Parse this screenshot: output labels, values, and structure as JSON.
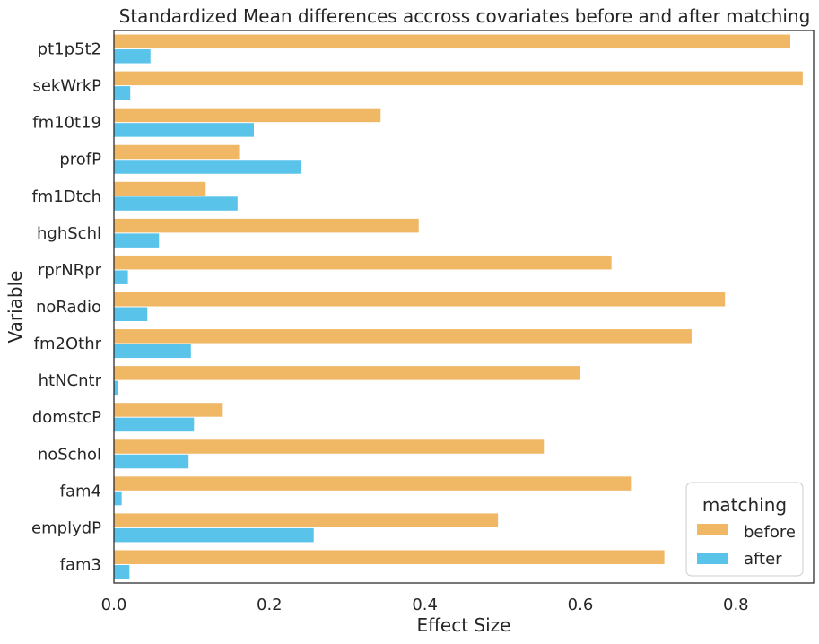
{
  "chart_data": {
    "type": "bar",
    "orientation": "horizontal",
    "title": "Standardized Mean differences accross covariates before and after matching",
    "xlabel": "Effect Size",
    "ylabel": "Variable",
    "xlim": [
      0,
      0.9
    ],
    "xticks": [
      "0.0",
      "0.2",
      "0.4",
      "0.6",
      "0.8"
    ],
    "xtick_values": [
      0,
      0.2,
      0.4,
      0.6,
      0.8
    ],
    "grid": false,
    "legend": {
      "title": "matching",
      "position": "bottom-right"
    },
    "categories": [
      "pt1p5t2",
      "sekWrkP",
      "fm10t19",
      "profP",
      "fm1Dtch",
      "hghSchl",
      "rprNRpr",
      "noRadio",
      "fm2Othr",
      "htNCntr",
      "domstcP",
      "noSchol",
      "fam4",
      "emplydP",
      "fam3"
    ],
    "series": [
      {
        "name": "before",
        "color": "#F0B765",
        "values": [
          0.87,
          0.886,
          0.343,
          0.161,
          0.118,
          0.392,
          0.64,
          0.786,
          0.743,
          0.6,
          0.14,
          0.553,
          0.665,
          0.494,
          0.708
        ]
      },
      {
        "name": "after",
        "color": "#59C3EA",
        "values": [
          0.047,
          0.021,
          0.18,
          0.24,
          0.159,
          0.058,
          0.018,
          0.043,
          0.099,
          0.005,
          0.103,
          0.096,
          0.01,
          0.257,
          0.02
        ]
      }
    ]
  }
}
